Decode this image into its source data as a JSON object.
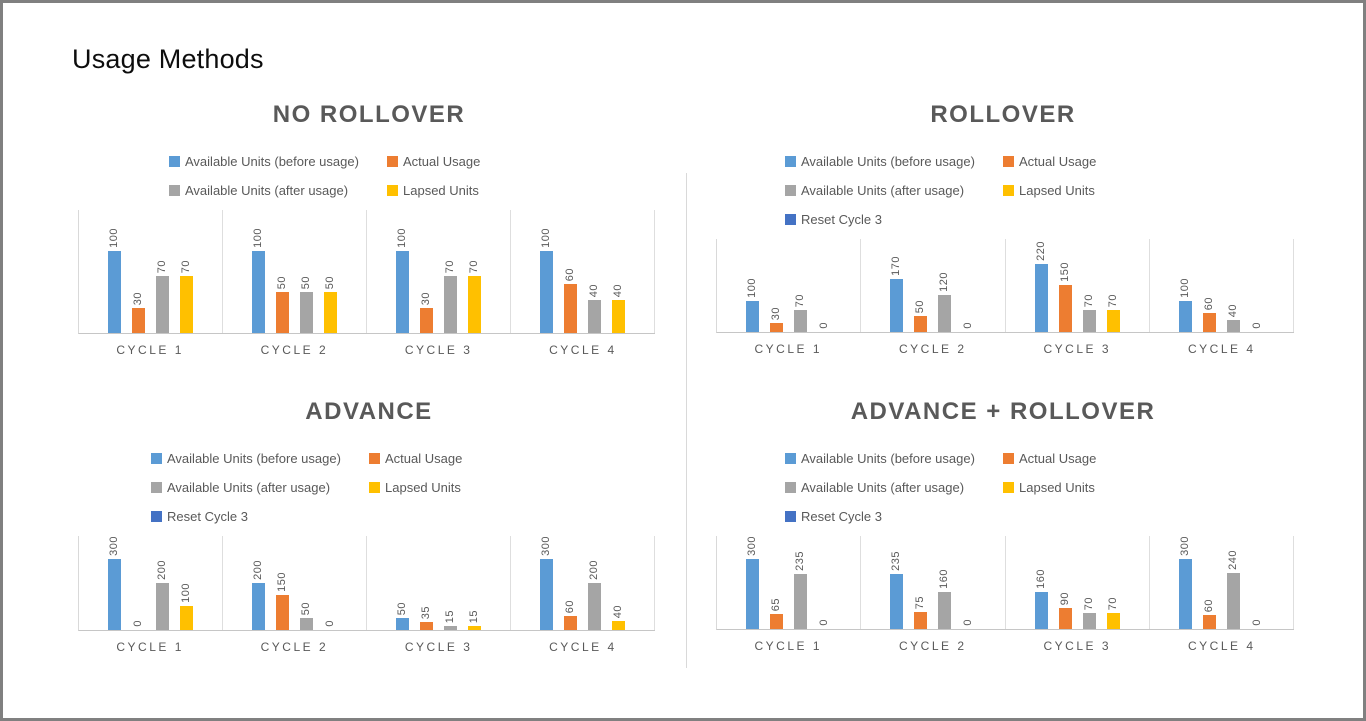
{
  "page_title": "Usage Methods",
  "colors": {
    "series_blue": "#5B9BD5",
    "series_orange": "#ED7D31",
    "series_gray": "#A5A5A5",
    "series_yellow": "#FFC000",
    "series_dark_blue": "#4472C4",
    "axis_line": "#D9D9D9",
    "label_text": "#595959",
    "title_text": "#595959",
    "page_border": "#808080"
  },
  "chart_data": [
    {
      "type": "bar",
      "title": "NO ROLLOVER",
      "categories": [
        "CYCLE 1",
        "CYCLE 2",
        "CYCLE 3",
        "CYCLE 4"
      ],
      "series": [
        {
          "name": "Available Units (before usage)",
          "color": "#5B9BD5",
          "values": [
            100,
            100,
            100,
            100
          ]
        },
        {
          "name": "Actual Usage",
          "color": "#ED7D31",
          "values": [
            30,
            50,
            30,
            60
          ]
        },
        {
          "name": "Available Units (after usage)",
          "color": "#A5A5A5",
          "values": [
            70,
            50,
            70,
            40
          ]
        },
        {
          "name": "Lapsed Units",
          "color": "#FFC000",
          "values": [
            70,
            50,
            70,
            40
          ]
        }
      ],
      "ylim": [
        0,
        150
      ],
      "data_labels": true,
      "grid": false,
      "legend_position": "top"
    },
    {
      "type": "bar",
      "title": "ROLLOVER",
      "categories": [
        "CYCLE 1",
        "CYCLE 2",
        "CYCLE 3",
        "CYCLE 4"
      ],
      "series": [
        {
          "name": "Available Units (before usage)",
          "color": "#5B9BD5",
          "values": [
            100,
            170,
            220,
            100
          ]
        },
        {
          "name": "Actual Usage",
          "color": "#ED7D31",
          "values": [
            30,
            50,
            150,
            60
          ]
        },
        {
          "name": "Available Units (after usage)",
          "color": "#A5A5A5",
          "values": [
            70,
            120,
            70,
            40
          ]
        },
        {
          "name": "Lapsed Units",
          "color": "#FFC000",
          "values": [
            0,
            0,
            70,
            0
          ]
        },
        {
          "name": "Reset Cycle 3",
          "color": "#4472C4",
          "values": []
        }
      ],
      "ylim": [
        0,
        300
      ],
      "data_labels": true,
      "grid": false,
      "legend_position": "top"
    },
    {
      "type": "bar",
      "title": "ADVANCE",
      "categories": [
        "CYCLE 1",
        "CYCLE 2",
        "CYCLE 3",
        "CYCLE 4"
      ],
      "series": [
        {
          "name": "Available Units (before usage)",
          "color": "#5B9BD5",
          "values": [
            300,
            200,
            50,
            300
          ]
        },
        {
          "name": "Actual Usage",
          "color": "#ED7D31",
          "values": [
            0,
            150,
            35,
            60
          ]
        },
        {
          "name": "Available Units (after usage)",
          "color": "#A5A5A5",
          "values": [
            200,
            50,
            15,
            200
          ]
        },
        {
          "name": "Lapsed Units",
          "color": "#FFC000",
          "values": [
            100,
            0,
            15,
            40
          ]
        },
        {
          "name": "Reset Cycle 3",
          "color": "#4472C4",
          "values": []
        }
      ],
      "ylim": [
        0,
        400
      ],
      "data_labels": true,
      "grid": false,
      "legend_position": "top"
    },
    {
      "type": "bar",
      "title": "ADVANCE + ROLLOVER",
      "categories": [
        "CYCLE 1",
        "CYCLE 2",
        "CYCLE 3",
        "CYCLE 4"
      ],
      "series": [
        {
          "name": "Available Units (before usage)",
          "color": "#5B9BD5",
          "values": [
            300,
            235,
            160,
            300
          ]
        },
        {
          "name": "Actual Usage",
          "color": "#ED7D31",
          "values": [
            65,
            75,
            90,
            60
          ]
        },
        {
          "name": "Available Units (after usage)",
          "color": "#A5A5A5",
          "values": [
            235,
            160,
            70,
            240
          ]
        },
        {
          "name": "Lapsed Units",
          "color": "#FFC000",
          "values": [
            0,
            0,
            70,
            0
          ]
        },
        {
          "name": "Reset Cycle 3",
          "color": "#4472C4",
          "values": []
        }
      ],
      "ylim": [
        0,
        400
      ],
      "data_labels": true,
      "grid": false,
      "legend_position": "top"
    }
  ]
}
